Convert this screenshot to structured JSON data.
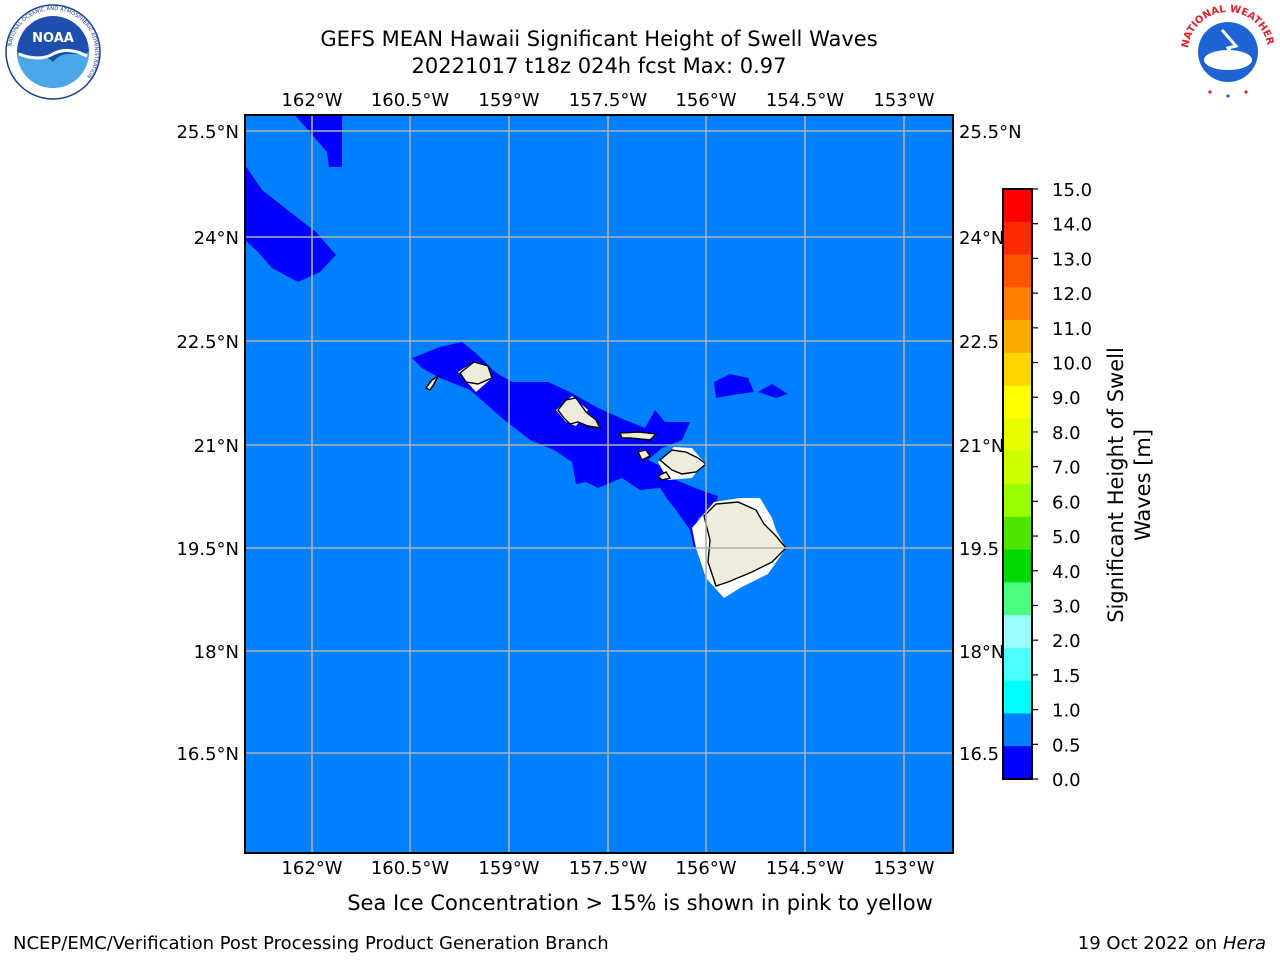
{
  "title": {
    "line1": "GEFS MEAN Hawaii Significant Height of Swell Waves",
    "line2": "20221017 t18z 024h fcst   Max: 0.97"
  },
  "map": {
    "lon_ticks": [
      "162°W",
      "160.5°W",
      "159°W",
      "157.5°W",
      "156°W",
      "154.5°W",
      "153°W"
    ],
    "lat_ticks": [
      "25.5°N",
      "24°N",
      "22.5°N",
      "21°N",
      "19.5°N",
      "18°N",
      "16.5°N"
    ],
    "right_lat_ticks": [
      "25.5°N",
      "24°N",
      "22.5",
      "21°N",
      "19.5",
      "18°N",
      "16.5"
    ],
    "colors": {
      "ocean": "#0080ff",
      "low_swell": "#0000ff",
      "land": "#efecdc",
      "grid": "#b0b0b0"
    }
  },
  "colorbar": {
    "label_line1": "Significant Height of Swell",
    "label_line2": "Waves [m]",
    "ticks": [
      "15.0",
      "14.0",
      "13.0",
      "12.0",
      "11.0",
      "10.0",
      "9.0",
      "8.0",
      "7.0",
      "6.0",
      "5.0",
      "4.0",
      "3.0",
      "2.0",
      "1.5",
      "1.0",
      "0.5",
      "0.0"
    ],
    "bands": [
      "#ff0000",
      "#ff2a00",
      "#ff5500",
      "#ff8000",
      "#ffaa00",
      "#ffd400",
      "#ffff00",
      "#e6ff00",
      "#ccff00",
      "#99ff00",
      "#4ce600",
      "#00d900",
      "#4dff80",
      "#99ffff",
      "#4dffff",
      "#00ffff",
      "#0080ff",
      "#0000ff"
    ]
  },
  "caption": "Sea Ice Concentration > 15% is shown in pink to yellow",
  "footer": {
    "left": "NCEP/EMC/Verification Post Processing Product Generation Branch",
    "right_date": "19 Oct 2022 on ",
    "right_host": "Hera"
  },
  "logos": {
    "noaa": {
      "text": "NOAA",
      "ring_text": "NATIONAL OCEANIC AND ATMOSPHERIC ADMINISTRATION"
    },
    "nws": {
      "ring_text": "NATIONAL WEATHER SERVICE"
    }
  }
}
